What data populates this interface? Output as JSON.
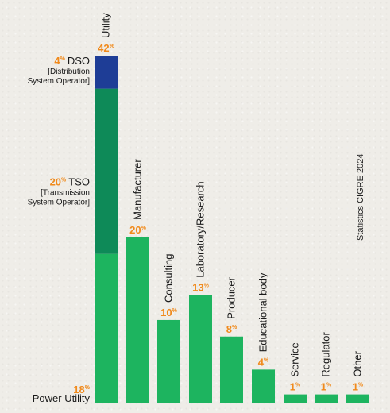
{
  "chart_data": {
    "type": "bar",
    "stacked_first_bar": true,
    "categories": [
      "Utility",
      "Manufacturer",
      "Consulting",
      "Laboratory/Research",
      "Producer",
      "Educational body",
      "Service",
      "Regulator",
      "Other"
    ],
    "values": [
      42,
      20,
      10,
      13,
      8,
      4,
      1,
      1,
      1
    ],
    "unit": "%",
    "utility_breakdown": [
      {
        "name": "Power Utility",
        "desc": "",
        "value": 18,
        "color": "#1db45f"
      },
      {
        "name": "TSO",
        "desc": "[Transmission System Operator]",
        "desc_lines": [
          "[Transmission",
          "System Operator]"
        ],
        "value": 20,
        "color": "#0e8a58"
      },
      {
        "name": "DSO",
        "desc": "[Distribution System Operator]",
        "desc_lines": [
          "[Distribution",
          "System Operator]"
        ],
        "value": 4,
        "color": "#1e3d96"
      }
    ],
    "bar_color": "#1db45f",
    "source": "Statistics CIGRE 2024"
  },
  "colors": {
    "percent": "#f08a1c",
    "bar": "#1db45f",
    "tso": "#0e8a58",
    "dso": "#1e3d96"
  }
}
